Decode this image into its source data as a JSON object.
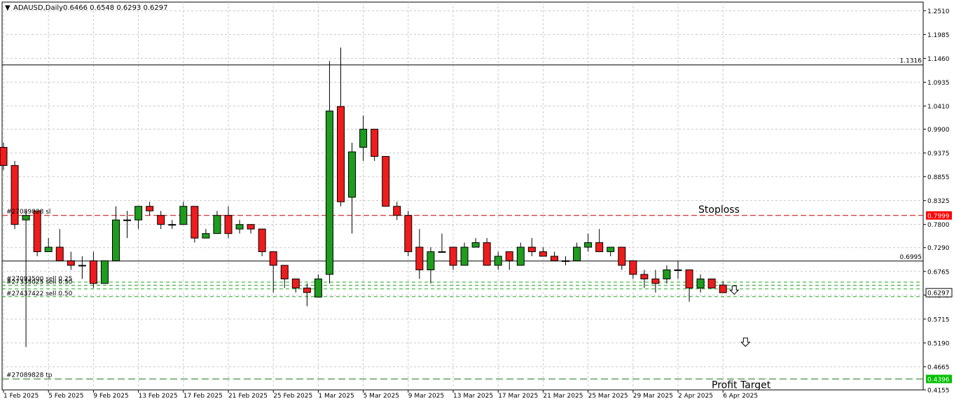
{
  "header": {
    "symbol_label": "ADAUSD,Daily",
    "ohlc_label": "0.6466 0.6548 0.6293 0.6297"
  },
  "colors": {
    "bull": "#1e9c1e",
    "bear": "#ee1c1c",
    "grid": "#c8c8c8",
    "stoploss": "#cc0000",
    "order": "#22aa22",
    "tag_red": "#ff0000",
    "tag_green": "#00c000"
  },
  "chart_data": {
    "type": "candlestick",
    "symbol": "ADAUSD",
    "timeframe": "Daily",
    "ylim": [
      0.4155,
      1.27
    ],
    "y_ticks": [
      "1.2510",
      "1.1985",
      "1.1460",
      "1.0935",
      "1.0410",
      "0.9900",
      "0.9375",
      "0.8855",
      "0.8325",
      "0.7800",
      "0.7290",
      "0.6765",
      "0.6245",
      "0.5715",
      "0.5190",
      "0.4665",
      "0.4155"
    ],
    "x_ticks": [
      {
        "i": 0,
        "label": "1 Feb 2025"
      },
      {
        "i": 4,
        "label": "5 Feb 2025"
      },
      {
        "i": 8,
        "label": "9 Feb 2025"
      },
      {
        "i": 12,
        "label": "13 Feb 2025"
      },
      {
        "i": 16,
        "label": "17 Feb 2025"
      },
      {
        "i": 20,
        "label": "21 Feb 2025"
      },
      {
        "i": 24,
        "label": "25 Feb 2025"
      },
      {
        "i": 28,
        "label": "1 Mar 2025"
      },
      {
        "i": 32,
        "label": "5 Mar 2025"
      },
      {
        "i": 36,
        "label": "9 Mar 2025"
      },
      {
        "i": 40,
        "label": "13 Mar 2025"
      },
      {
        "i": 44,
        "label": "17 Mar 2025"
      },
      {
        "i": 48,
        "label": "21 Mar 2025"
      },
      {
        "i": 52,
        "label": "25 Mar 2025"
      },
      {
        "i": 56,
        "label": "29 Mar 2025"
      },
      {
        "i": 60,
        "label": "2 Apr 2025"
      },
      {
        "i": 64,
        "label": "6 Apr 2025"
      }
    ],
    "candles": [
      [
        0.95,
        0.96,
        0.9,
        0.91
      ],
      [
        0.91,
        0.92,
        0.77,
        0.78
      ],
      [
        0.79,
        0.81,
        0.51,
        0.8
      ],
      [
        0.81,
        0.81,
        0.71,
        0.72
      ],
      [
        0.72,
        0.75,
        0.72,
        0.73
      ],
      [
        0.73,
        0.77,
        0.7,
        0.7
      ],
      [
        0.7,
        0.72,
        0.68,
        0.69
      ],
      [
        0.69,
        0.71,
        0.66,
        0.69
      ],
      [
        0.7,
        0.72,
        0.64,
        0.65
      ],
      [
        0.65,
        0.7,
        0.65,
        0.7
      ],
      [
        0.7,
        0.82,
        0.7,
        0.79
      ],
      [
        0.79,
        0.81,
        0.75,
        0.79
      ],
      [
        0.79,
        0.82,
        0.77,
        0.82
      ],
      [
        0.82,
        0.83,
        0.8,
        0.81
      ],
      [
        0.8,
        0.81,
        0.77,
        0.78
      ],
      [
        0.78,
        0.79,
        0.77,
        0.78
      ],
      [
        0.78,
        0.83,
        0.78,
        0.82
      ],
      [
        0.82,
        0.82,
        0.74,
        0.75
      ],
      [
        0.75,
        0.77,
        0.75,
        0.76
      ],
      [
        0.76,
        0.81,
        0.76,
        0.8
      ],
      [
        0.8,
        0.82,
        0.75,
        0.76
      ],
      [
        0.77,
        0.79,
        0.76,
        0.78
      ],
      [
        0.78,
        0.78,
        0.76,
        0.77
      ],
      [
        0.77,
        0.77,
        0.71,
        0.72
      ],
      [
        0.72,
        0.72,
        0.63,
        0.69
      ],
      [
        0.69,
        0.69,
        0.64,
        0.66
      ],
      [
        0.66,
        0.66,
        0.63,
        0.64
      ],
      [
        0.64,
        0.65,
        0.6,
        0.63
      ],
      [
        0.62,
        0.67,
        0.62,
        0.66
      ],
      [
        0.67,
        1.14,
        0.65,
        1.03
      ],
      [
        1.04,
        1.17,
        0.82,
        0.83
      ],
      [
        0.84,
        0.96,
        0.76,
        0.94
      ],
      [
        0.95,
        1.02,
        0.92,
        0.99
      ],
      [
        0.99,
        0.99,
        0.92,
        0.93
      ],
      [
        0.93,
        0.93,
        0.82,
        0.82
      ],
      [
        0.82,
        0.83,
        0.79,
        0.8
      ],
      [
        0.8,
        0.81,
        0.71,
        0.72
      ],
      [
        0.73,
        0.77,
        0.66,
        0.68
      ],
      [
        0.68,
        0.73,
        0.65,
        0.72
      ],
      [
        0.72,
        0.76,
        0.72,
        0.72
      ],
      [
        0.73,
        0.73,
        0.68,
        0.69
      ],
      [
        0.69,
        0.74,
        0.69,
        0.73
      ],
      [
        0.73,
        0.75,
        0.73,
        0.74
      ],
      [
        0.74,
        0.75,
        0.69,
        0.69
      ],
      [
        0.69,
        0.72,
        0.68,
        0.71
      ],
      [
        0.72,
        0.72,
        0.68,
        0.7
      ],
      [
        0.69,
        0.74,
        0.69,
        0.73
      ],
      [
        0.73,
        0.75,
        0.71,
        0.72
      ],
      [
        0.72,
        0.73,
        0.71,
        0.71
      ],
      [
        0.71,
        0.72,
        0.7,
        0.7
      ],
      [
        0.7,
        0.71,
        0.69,
        0.7
      ],
      [
        0.7,
        0.74,
        0.7,
        0.73
      ],
      [
        0.73,
        0.76,
        0.72,
        0.74
      ],
      [
        0.74,
        0.77,
        0.72,
        0.72
      ],
      [
        0.72,
        0.73,
        0.71,
        0.73
      ],
      [
        0.73,
        0.73,
        0.68,
        0.69
      ],
      [
        0.7,
        0.7,
        0.66,
        0.67
      ],
      [
        0.67,
        0.68,
        0.64,
        0.66
      ],
      [
        0.66,
        0.68,
        0.63,
        0.65
      ],
      [
        0.66,
        0.69,
        0.65,
        0.68
      ],
      [
        0.68,
        0.7,
        0.66,
        0.68
      ],
      [
        0.68,
        0.68,
        0.61,
        0.64
      ],
      [
        0.64,
        0.67,
        0.63,
        0.66
      ],
      [
        0.66,
        0.66,
        0.64,
        0.64
      ],
      [
        0.6466,
        0.6548,
        0.6293,
        0.6297
      ]
    ]
  },
  "levels": {
    "resistance": {
      "price": 1.1316,
      "label": "1.1316"
    },
    "pivot": {
      "price": 0.6995,
      "label": "0.6995"
    },
    "stoploss": {
      "price": 0.7999,
      "label": "0.7999",
      "text": "Stoploss",
      "order_label": "#27089828 sl"
    },
    "profit_target": {
      "price": 0.4396,
      "label": "0.4396",
      "text": "Profit Target",
      "order_label": "#27089828 tp"
    },
    "current": {
      "price": 0.6297,
      "label": "0.6297"
    },
    "orders": [
      {
        "price": 0.653,
        "label": "#27093500 sell 0.25"
      },
      {
        "price": 0.646,
        "label": "#27335025 sell 0.50"
      },
      {
        "price": 0.621,
        "label": "#27437422 sell 0.50"
      },
      {
        "price": 0.638,
        "label": ""
      }
    ]
  },
  "arrows": [
    {
      "bar": 65,
      "price": 0.634
    },
    {
      "bar": 66,
      "price": 0.519
    }
  ]
}
